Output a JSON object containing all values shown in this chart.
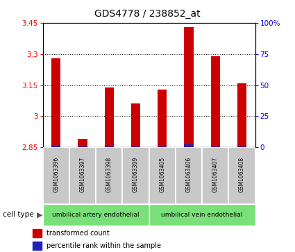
{
  "title": "GDS4778 / 238852_at",
  "samples": [
    "GSM1063396",
    "GSM1063397",
    "GSM1063398",
    "GSM1063399",
    "GSM1063405",
    "GSM1063406",
    "GSM1063407",
    "GSM1063408"
  ],
  "red_values": [
    3.28,
    2.89,
    3.14,
    3.06,
    3.13,
    3.43,
    3.29,
    3.16
  ],
  "blue_values": [
    2.857,
    2.853,
    2.853,
    2.853,
    2.854,
    2.864,
    2.854,
    2.854
  ],
  "ylim_left": [
    2.85,
    3.45
  ],
  "ylim_right": [
    0,
    100
  ],
  "yticks_left": [
    2.85,
    3.0,
    3.15,
    3.3,
    3.45
  ],
  "yticks_right": [
    0,
    25,
    50,
    75,
    100
  ],
  "ytick_labels_left": [
    "2.85",
    "3",
    "3.15",
    "3.3",
    "3.45"
  ],
  "ytick_labels_right": [
    "0",
    "25",
    "50",
    "75",
    "100%"
  ],
  "bar_width": 0.35,
  "red_color": "#CC0000",
  "blue_color": "#2222BB",
  "baseline": 2.85,
  "gray_box_color": "#C8C8C8",
  "group1_label": "umbilical artery endothelial",
  "group2_label": "umbilical vein endothelial",
  "cell_type_color": "#7AE07A",
  "legend_red": "transformed count",
  "legend_blue": "percentile rank within the sample",
  "cell_type_text": "cell type"
}
